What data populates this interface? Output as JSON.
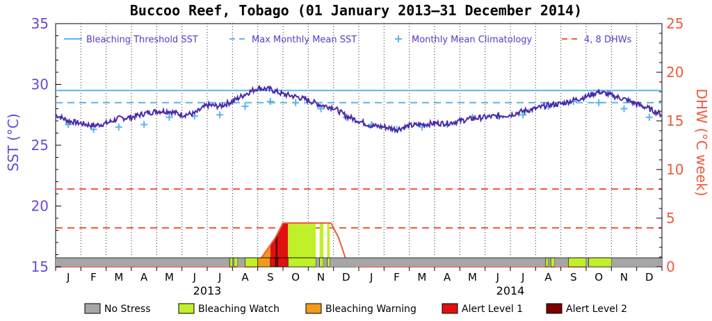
{
  "chart_data": {
    "type": "line",
    "title": "Buccoo Reef, Tobago (01 January 2013–31 December 2014)",
    "ylabel_left": "SST (°C)",
    "ylabel_right": "DHW (°C week)",
    "ylim_left": [
      15,
      35
    ],
    "ylim_right": [
      0,
      25
    ],
    "yticks_left": [
      "15",
      "20",
      "25",
      "30",
      "35"
    ],
    "yticks_right": [
      "0",
      "5",
      "10",
      "15",
      "20",
      "25"
    ],
    "months": [
      "J",
      "F",
      "M",
      "A",
      "M",
      "J",
      "J",
      "A",
      "S",
      "O",
      "N",
      "D",
      "J",
      "F",
      "M",
      "A",
      "M",
      "J",
      "J",
      "A",
      "S",
      "O",
      "N",
      "D"
    ],
    "years": [
      "2013",
      "2014"
    ],
    "bleaching_threshold_sst": 29.5,
    "max_monthly_mean_sst": 28.5,
    "dhw_reference_lines": [
      4,
      8
    ],
    "legend_top": [
      {
        "label": "Bleaching Threshold SST",
        "style": "solid",
        "color": "#5ab4ea"
      },
      {
        "label": "Max Monthly Mean SST",
        "style": "dashed",
        "color": "#5ab4ea"
      },
      {
        "label": "Monthly Mean Climatology",
        "style": "plus",
        "color": "#5ab4ea"
      },
      {
        "label": "4, 8 DHWs",
        "style": "dashed",
        "color": "#f05a3c"
      }
    ],
    "legend_bottom": [
      {
        "label": "No Stress",
        "color": "#a6a6a6"
      },
      {
        "label": "Bleaching Watch",
        "color": "#bff02a"
      },
      {
        "label": "Bleaching Warning",
        "color": "#f29a1a"
      },
      {
        "label": "Alert Level 1",
        "color": "#e01010"
      },
      {
        "label": "Alert Level 2",
        "color": "#7a0000"
      }
    ],
    "climatology": {
      "month_index": [
        0,
        1,
        2,
        3,
        4,
        5,
        6,
        7,
        8,
        9,
        10,
        11,
        12,
        13,
        14,
        15,
        16,
        17,
        18,
        19,
        20,
        21,
        22,
        23
      ],
      "values": [
        26.7,
        26.3,
        26.5,
        26.7,
        27.3,
        27.4,
        27.5,
        28.2,
        28.6,
        28.5,
        28.0,
        27.3,
        26.7,
        26.3,
        26.5,
        26.7,
        27.3,
        27.4,
        27.5,
        28.2,
        28.6,
        28.5,
        28.0,
        27.3
      ]
    },
    "sst_series": {
      "name": "SST",
      "month_pos": [
        0,
        0.5,
        1,
        1.5,
        2,
        2.5,
        3,
        3.5,
        4,
        4.5,
        5,
        5.5,
        6,
        6.5,
        7,
        7.5,
        8,
        8.5,
        9,
        9.5,
        10,
        10.5,
        11,
        11.5,
        12,
        12.5,
        13,
        13.5,
        14,
        14.5,
        15,
        15.5,
        16,
        16.5,
        17,
        17.5,
        18,
        18.5,
        19,
        19.5,
        20,
        20.5,
        21,
        21.5,
        22,
        22.5,
        23,
        23.5,
        24
      ],
      "values": [
        27.5,
        27.0,
        26.8,
        26.6,
        26.8,
        27.2,
        27.3,
        27.6,
        27.8,
        27.8,
        27.5,
        27.6,
        28.3,
        28.2,
        28.6,
        29.2,
        29.7,
        29.6,
        29.2,
        29.0,
        28.7,
        28.3,
        28.1,
        27.4,
        27.0,
        26.6,
        26.5,
        26.3,
        26.6,
        26.7,
        26.8,
        26.8,
        27.0,
        27.2,
        27.3,
        27.4,
        27.5,
        27.8,
        28.0,
        28.3,
        28.4,
        28.7,
        29.0,
        29.4,
        29.1,
        28.8,
        28.4,
        28.0,
        27.5
      ]
    },
    "dhw_series": {
      "name": "DHW",
      "month_pos": [
        0,
        7.9,
        8.3,
        8.7,
        9.0,
        9.15,
        10.0,
        10.9,
        11.2,
        11.55,
        12.0,
        21.0,
        21.05,
        24.0
      ],
      "values": [
        0,
        0,
        1.5,
        3.0,
        4.5,
        4.5,
        4.5,
        4.5,
        3.0,
        0.3,
        0,
        0,
        0.5,
        0.5
      ]
    },
    "stress_bar": {
      "segments": [
        {
          "start": 0,
          "end": 6.9,
          "level": "No Stress"
        },
        {
          "start": 6.9,
          "end": 7.0,
          "level": "Bleaching Watch"
        },
        {
          "start": 7.0,
          "end": 7.05,
          "level": "No Stress"
        },
        {
          "start": 7.05,
          "end": 7.2,
          "level": "Bleaching Watch"
        },
        {
          "start": 7.2,
          "end": 7.5,
          "level": "No Stress"
        },
        {
          "start": 7.5,
          "end": 8.0,
          "level": "Bleaching Watch"
        },
        {
          "start": 8.0,
          "end": 8.5,
          "level": "Bleaching Warning"
        },
        {
          "start": 8.5,
          "end": 8.7,
          "level": "Alert Level 1"
        },
        {
          "start": 8.7,
          "end": 8.8,
          "level": "Alert Level 2"
        },
        {
          "start": 8.8,
          "end": 9.2,
          "level": "Alert Level 1"
        },
        {
          "start": 9.2,
          "end": 10.3,
          "level": "Bleaching Watch"
        },
        {
          "start": 10.3,
          "end": 10.45,
          "level": "No Stress"
        },
        {
          "start": 10.45,
          "end": 10.6,
          "level": "Bleaching Watch"
        },
        {
          "start": 10.6,
          "end": 10.75,
          "level": "No Stress"
        },
        {
          "start": 10.75,
          "end": 10.85,
          "level": "Bleaching Watch"
        },
        {
          "start": 10.85,
          "end": 19.4,
          "level": "No Stress"
        },
        {
          "start": 19.4,
          "end": 19.5,
          "level": "Bleaching Watch"
        },
        {
          "start": 19.5,
          "end": 19.6,
          "level": "No Stress"
        },
        {
          "start": 19.6,
          "end": 19.75,
          "level": "Bleaching Watch"
        },
        {
          "start": 19.75,
          "end": 20.3,
          "level": "No Stress"
        },
        {
          "start": 20.3,
          "end": 21.0,
          "level": "Bleaching Watch"
        },
        {
          "start": 21.0,
          "end": 21.1,
          "level": "No Stress"
        },
        {
          "start": 21.1,
          "end": 22.0,
          "level": "Bleaching Watch"
        },
        {
          "start": 22.0,
          "end": 24.0,
          "level": "No Stress"
        }
      ]
    }
  }
}
